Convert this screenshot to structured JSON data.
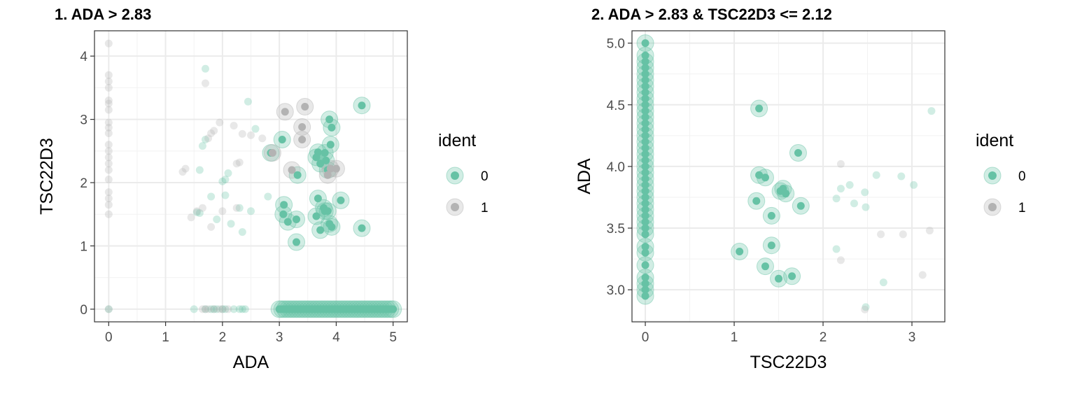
{
  "colors": {
    "ident_0": "#66c2a5",
    "ident_1": "#b3b3b3"
  },
  "chart_data": [
    {
      "type": "scatter",
      "title": "1. ADA > 2.83",
      "xlabel": "ADA",
      "ylabel": "TSC22D3",
      "xlim": [
        -0.25,
        5.25
      ],
      "ylim": [
        -0.2,
        4.4
      ],
      "xticks": [
        0,
        1,
        2,
        3,
        4,
        5
      ],
      "yticks": [
        0,
        1,
        2,
        3,
        4
      ],
      "grid": true,
      "legend": {
        "title": "ident",
        "position": "right",
        "entries": [
          "0",
          "1"
        ]
      },
      "series": [
        {
          "name": "0",
          "highlight": [
            [
              3.0,
              0
            ],
            [
              3.05,
              0
            ],
            [
              3.1,
              0
            ],
            [
              3.15,
              0
            ],
            [
              3.2,
              0
            ],
            [
              3.25,
              0
            ],
            [
              3.3,
              0
            ],
            [
              3.35,
              0
            ],
            [
              3.4,
              0
            ],
            [
              3.45,
              0
            ],
            [
              3.5,
              0
            ],
            [
              3.55,
              0
            ],
            [
              3.6,
              0
            ],
            [
              3.65,
              0
            ],
            [
              3.7,
              0
            ],
            [
              3.75,
              0
            ],
            [
              3.8,
              0
            ],
            [
              3.85,
              0
            ],
            [
              3.9,
              0
            ],
            [
              3.95,
              0
            ],
            [
              4.0,
              0
            ],
            [
              4.05,
              0
            ],
            [
              4.1,
              0
            ],
            [
              4.15,
              0
            ],
            [
              4.2,
              0
            ],
            [
              4.25,
              0
            ],
            [
              4.3,
              0
            ],
            [
              4.35,
              0
            ],
            [
              4.4,
              0
            ],
            [
              4.45,
              0
            ],
            [
              4.5,
              0
            ],
            [
              4.55,
              0
            ],
            [
              4.6,
              0
            ],
            [
              4.65,
              0
            ],
            [
              4.7,
              0
            ],
            [
              4.75,
              0
            ],
            [
              4.8,
              0
            ],
            [
              4.85,
              0
            ],
            [
              4.9,
              0
            ],
            [
              4.95,
              0
            ],
            [
              5.0,
              0
            ],
            [
              3.05,
              2.68
            ],
            [
              2.85,
              2.47
            ],
            [
              3.08,
              1.65
            ],
            [
              3.07,
              1.5
            ],
            [
              3.15,
              1.38
            ],
            [
              3.3,
              1.42
            ],
            [
              3.3,
              1.06
            ],
            [
              3.32,
              2.12
            ],
            [
              3.68,
              2.48
            ],
            [
              3.65,
              2.4
            ],
            [
              3.72,
              2.3
            ],
            [
              3.8,
              2.47
            ],
            [
              3.85,
              2.2
            ],
            [
              3.82,
              2.35
            ],
            [
              3.88,
              3.0
            ],
            [
              3.92,
              2.87
            ],
            [
              3.9,
              2.6
            ],
            [
              3.68,
              1.75
            ],
            [
              3.65,
              1.47
            ],
            [
              3.72,
              1.25
            ],
            [
              3.78,
              1.6
            ],
            [
              3.8,
              1.55
            ],
            [
              3.85,
              1.55
            ],
            [
              3.88,
              1.35
            ],
            [
              3.92,
              1.3
            ],
            [
              4.08,
              1.72
            ],
            [
              4.45,
              3.22
            ],
            [
              4.45,
              1.28
            ]
          ],
          "faint": [
            [
              0,
              0
            ],
            [
              1.5,
              0
            ],
            [
              1.7,
              0
            ],
            [
              1.8,
              0
            ],
            [
              1.85,
              0
            ],
            [
              1.9,
              0
            ],
            [
              2.0,
              0
            ],
            [
              2.05,
              0
            ],
            [
              2.2,
              0
            ],
            [
              2.3,
              0
            ],
            [
              2.35,
              0
            ],
            [
              2.4,
              0
            ],
            [
              1.65,
              2.58
            ],
            [
              1.7,
              2.68
            ],
            [
              1.6,
              2.2
            ],
            [
              1.7,
              3.8
            ],
            [
              1.8,
              1.78
            ],
            [
              1.9,
              1.42
            ],
            [
              2.0,
              2.02
            ],
            [
              2.05,
              2.05
            ],
            [
              2.1,
              2.15
            ],
            [
              2.05,
              1.8
            ],
            [
              2.15,
              1.35
            ],
            [
              2.3,
              1.6
            ],
            [
              2.35,
              1.22
            ],
            [
              2.5,
              1.55
            ],
            [
              2.45,
              3.28
            ],
            [
              2.8,
              1.78
            ],
            [
              1.6,
              1.52
            ],
            [
              1.55,
              1.53
            ],
            [
              2.58,
              2.85
            ]
          ]
        },
        {
          "name": "1",
          "highlight": [
            [
              3.1,
              3.12
            ],
            [
              3.45,
              3.2
            ],
            [
              3.4,
              2.88
            ],
            [
              3.4,
              2.68
            ],
            [
              2.88,
              2.47
            ],
            [
              3.22,
              2.2
            ],
            [
              3.9,
              2.22
            ],
            [
              4.0,
              2.22
            ],
            [
              3.85,
              2.12
            ]
          ],
          "faint": [
            [
              0,
              4.2
            ],
            [
              0,
              3.7
            ],
            [
              0,
              3.6
            ],
            [
              0,
              3.5
            ],
            [
              0,
              3.3
            ],
            [
              0,
              3.25
            ],
            [
              0,
              3.15
            ],
            [
              0,
              2.95
            ],
            [
              0,
              2.87
            ],
            [
              0,
              2.78
            ],
            [
              0,
              2.6
            ],
            [
              0,
              2.5
            ],
            [
              0,
              2.4
            ],
            [
              0,
              2.3
            ],
            [
              0,
              2.2
            ],
            [
              0,
              2.05
            ],
            [
              0,
              1.85
            ],
            [
              0,
              1.75
            ],
            [
              0,
              1.65
            ],
            [
              0,
              1.5
            ],
            [
              0,
              0
            ],
            [
              1.7,
              3.57
            ],
            [
              1.8,
              2.78
            ],
            [
              1.75,
              2.7
            ],
            [
              1.85,
              2.82
            ],
            [
              1.95,
              2.95
            ],
            [
              2.2,
              2.9
            ],
            [
              2.3,
              2.32
            ],
            [
              2.25,
              2.3
            ],
            [
              2.35,
              2.77
            ],
            [
              2.5,
              2.75
            ],
            [
              2.7,
              2.7
            ],
            [
              1.3,
              2.17
            ],
            [
              1.35,
              2.22
            ],
            [
              1.45,
              1.45
            ],
            [
              1.55,
              1.55
            ],
            [
              1.65,
              1.6
            ],
            [
              1.8,
              1.3
            ],
            [
              2.0,
              1.55
            ],
            [
              2.25,
              1.6
            ],
            [
              1.65,
              0
            ],
            [
              1.7,
              0
            ],
            [
              1.75,
              0
            ],
            [
              1.85,
              0
            ],
            [
              1.95,
              0
            ],
            [
              2.0,
              0
            ],
            [
              2.1,
              0
            ]
          ]
        }
      ]
    },
    {
      "type": "scatter",
      "title": "2. ADA > 2.83 & TSC22D3 <= 2.12",
      "xlabel": "TSC22D3",
      "ylabel": "ADA",
      "xlim": [
        -0.15,
        3.37
      ],
      "ylim": [
        2.74,
        5.1
      ],
      "xticks": [
        0,
        1,
        2,
        3
      ],
      "yticks": [
        3.0,
        3.5,
        4.0,
        4.5,
        5.0
      ],
      "grid": true,
      "legend": {
        "title": "ident",
        "position": "right",
        "entries": [
          "0",
          "1"
        ]
      },
      "series": [
        {
          "name": "0",
          "highlight": [
            [
              0,
              2.95
            ],
            [
              0,
              3.0
            ],
            [
              0,
              3.05
            ],
            [
              0,
              3.1
            ],
            [
              0,
              3.2
            ],
            [
              0,
              3.3
            ],
            [
              0,
              3.35
            ],
            [
              0,
              3.45
            ],
            [
              0,
              3.5
            ],
            [
              0,
              3.55
            ],
            [
              0,
              3.6
            ],
            [
              0,
              3.65
            ],
            [
              0,
              3.7
            ],
            [
              0,
              3.75
            ],
            [
              0,
              3.8
            ],
            [
              0,
              3.85
            ],
            [
              0,
              3.9
            ],
            [
              0,
              3.95
            ],
            [
              0,
              4.0
            ],
            [
              0,
              4.05
            ],
            [
              0,
              4.1
            ],
            [
              0,
              4.15
            ],
            [
              0,
              4.2
            ],
            [
              0,
              4.25
            ],
            [
              0,
              4.3
            ],
            [
              0,
              4.35
            ],
            [
              0,
              4.4
            ],
            [
              0,
              4.45
            ],
            [
              0,
              4.5
            ],
            [
              0,
              4.55
            ],
            [
              0,
              4.6
            ],
            [
              0,
              4.65
            ],
            [
              0,
              4.7
            ],
            [
              0,
              4.75
            ],
            [
              0,
              4.8
            ],
            [
              0,
              4.85
            ],
            [
              0,
              4.9
            ],
            [
              0,
              5.0
            ],
            [
              1.28,
              4.47
            ],
            [
              1.28,
              3.93
            ],
            [
              1.35,
              3.91
            ],
            [
              1.25,
              3.72
            ],
            [
              1.06,
              3.31
            ],
            [
              1.42,
              3.6
            ],
            [
              1.52,
              3.8
            ],
            [
              1.55,
              3.82
            ],
            [
              1.58,
              3.78
            ],
            [
              1.75,
              3.68
            ],
            [
              1.72,
              4.11
            ],
            [
              1.42,
              3.36
            ],
            [
              1.35,
              3.19
            ],
            [
              1.5,
              3.09
            ],
            [
              1.65,
              3.11
            ]
          ],
          "faint": [
            [
              2.2,
              3.82
            ],
            [
              2.15,
              3.74
            ],
            [
              2.3,
              3.85
            ],
            [
              2.35,
              3.7
            ],
            [
              2.47,
              3.79
            ],
            [
              2.48,
              3.67
            ],
            [
              2.6,
              3.93
            ],
            [
              2.88,
              3.92
            ],
            [
              3.02,
              3.85
            ],
            [
              3.22,
              4.45
            ],
            [
              2.15,
              3.33
            ],
            [
              2.68,
              3.06
            ],
            [
              2.48,
              2.86
            ]
          ]
        },
        {
          "name": "1",
          "highlight": [],
          "faint": [
            [
              2.2,
              4.02
            ],
            [
              2.2,
              3.24
            ],
            [
              2.65,
              3.45
            ],
            [
              2.9,
              3.45
            ],
            [
              3.2,
              3.48
            ],
            [
              3.12,
              3.12
            ],
            [
              2.47,
              2.84
            ]
          ]
        }
      ]
    }
  ]
}
